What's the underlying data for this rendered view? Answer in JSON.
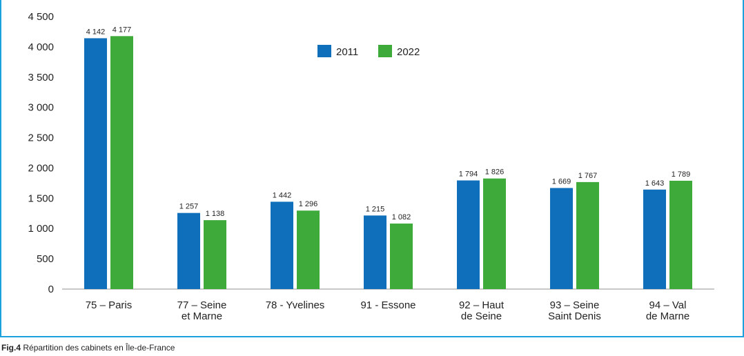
{
  "chart_data": {
    "type": "bar",
    "categories": [
      [
        "75 – Paris"
      ],
      [
        "77 – Seine",
        "et Marne"
      ],
      [
        "78 - Yvelines"
      ],
      [
        "91 - Essone"
      ],
      [
        "92 – Haut",
        "de Seine"
      ],
      [
        "93 – Seine",
        "Saint Denis"
      ],
      [
        "94 – Val",
        "de Marne"
      ]
    ],
    "series": [
      {
        "name": "2011",
        "color": "#0f6fba",
        "values": [
          4142,
          1257,
          1442,
          1215,
          1794,
          1669,
          1643
        ],
        "labels": [
          "4 142",
          "1 257",
          "1 442",
          "1 215",
          "1 794",
          "1 669",
          "1 643"
        ]
      },
      {
        "name": "2022",
        "color": "#3daa3a",
        "values": [
          4177,
          1138,
          1296,
          1082,
          1826,
          1767,
          1789
        ],
        "labels": [
          "4 177",
          "1 138",
          "1 296",
          "1 082",
          "1 826",
          "1 767",
          "1 789"
        ]
      }
    ],
    "ylim": [
      0,
      4500
    ],
    "yticks": [
      0,
      500,
      1000,
      1500,
      2000,
      2500,
      3000,
      3500,
      4000,
      4500
    ],
    "ytick_labels": [
      "0",
      "500",
      "1 000",
      "1 500",
      "2 000",
      "2 500",
      "3 000",
      "3 500",
      "4 000",
      "4 500"
    ],
    "grid": false,
    "legend_position": "top-center"
  },
  "caption": {
    "prefix": "Fig.4",
    "text": "Répartition des cabinets en Île-de-France"
  }
}
